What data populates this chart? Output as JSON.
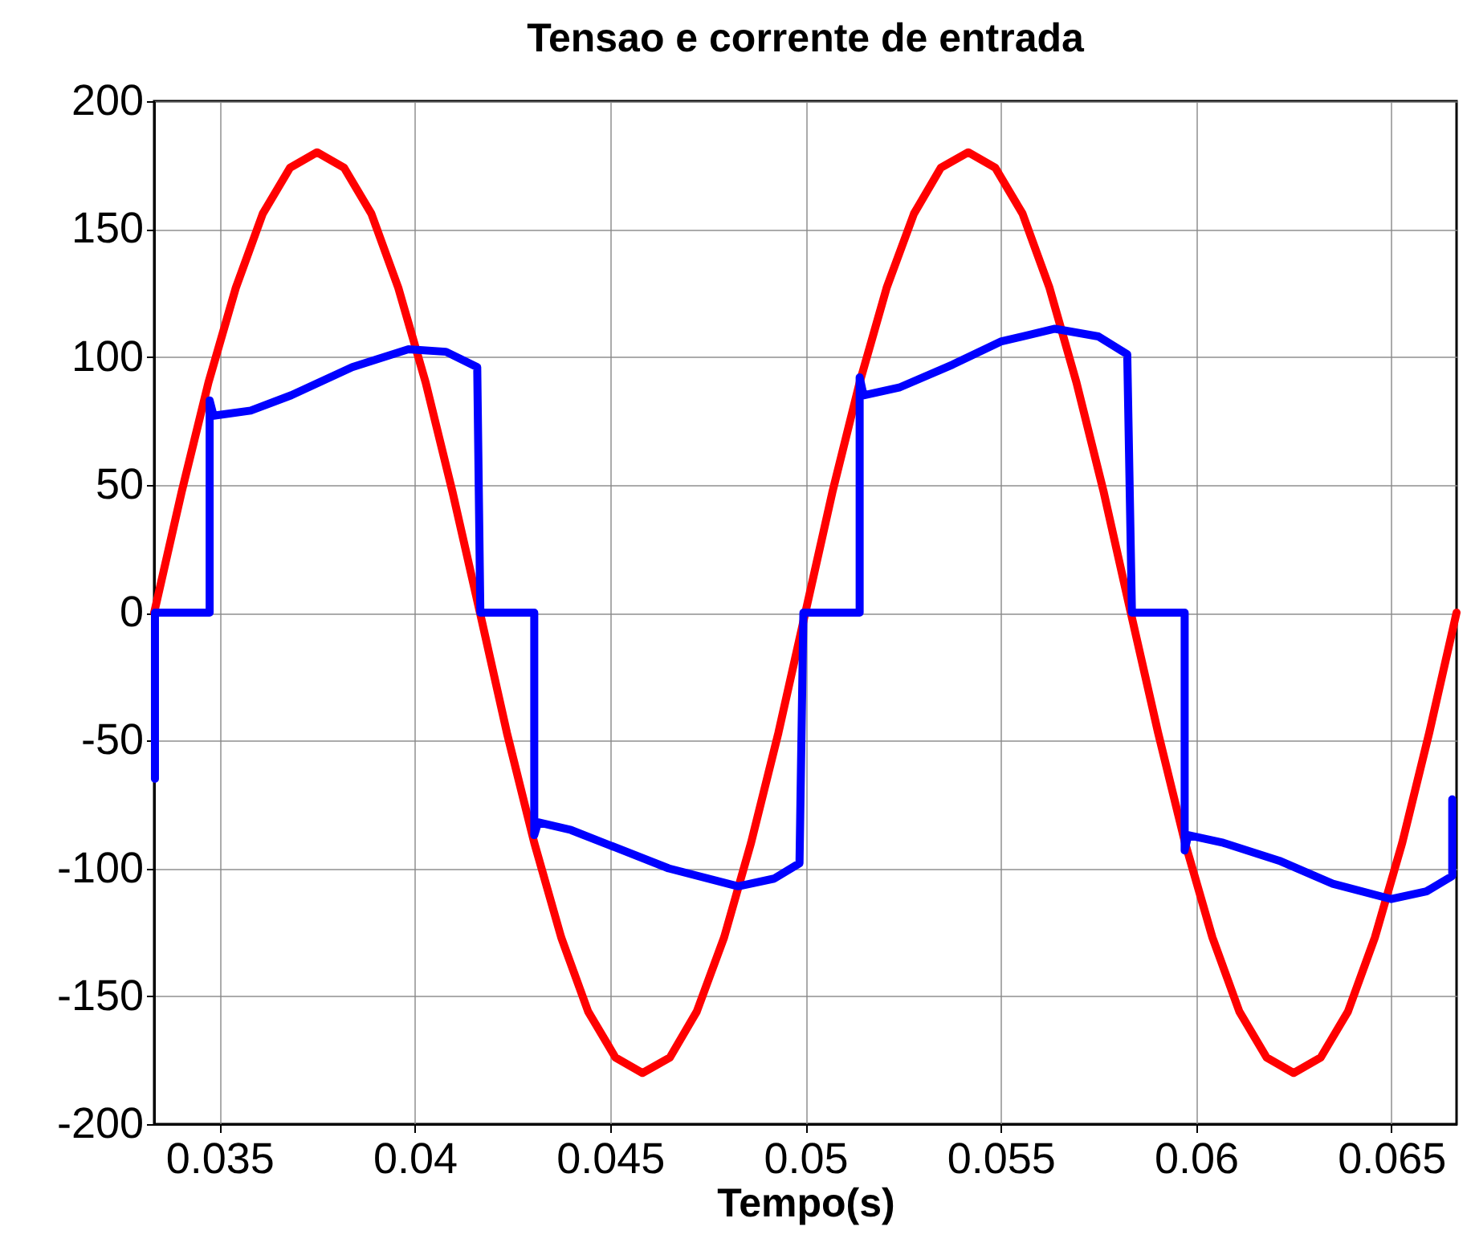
{
  "chart_data": {
    "type": "line",
    "title": "Tensao e corrente de entrada",
    "xlabel": "Tempo(s)",
    "xlim": [
      0.03333,
      0.06667
    ],
    "xticks": [
      0.035,
      0.04,
      0.045,
      0.05,
      0.055,
      0.06,
      0.065
    ],
    "ylim": [
      -200,
      200
    ],
    "yticks": [
      -200,
      -150,
      -100,
      -50,
      0,
      50,
      100,
      150,
      200
    ],
    "grid": true,
    "series": [
      {
        "color": "#ff0000",
        "x": [
          0.03333,
          0.03403,
          0.03472,
          0.03542,
          0.03611,
          0.03681,
          0.0375,
          0.03819,
          0.03889,
          0.03958,
          0.04028,
          0.04097,
          0.04167,
          0.04236,
          0.04306,
          0.04375,
          0.04444,
          0.04514,
          0.04583,
          0.04653,
          0.04722,
          0.04792,
          0.04861,
          0.04931,
          0.05,
          0.05069,
          0.05139,
          0.05208,
          0.05278,
          0.05347,
          0.05417,
          0.05486,
          0.05556,
          0.05625,
          0.05694,
          0.05764,
          0.05833,
          0.05903,
          0.05972,
          0.06042,
          0.06111,
          0.06181,
          0.0625,
          0.06319,
          0.06389,
          0.06458,
          0.06528,
          0.06597,
          0.06667
        ],
        "values": [
          0,
          47,
          90,
          127,
          156,
          174,
          180,
          174,
          156,
          127,
          90,
          47,
          0,
          -47,
          -90,
          -127,
          -156,
          -174,
          -180,
          -174,
          -156,
          -127,
          -90,
          -47,
          0,
          47,
          90,
          127,
          156,
          174,
          180,
          174,
          156,
          127,
          90,
          47,
          0,
          -47,
          -90,
          -127,
          -156,
          -174,
          -180,
          -174,
          -156,
          -127,
          -90,
          -47,
          0
        ]
      },
      {
        "color": "#0000ff",
        "x": [
          0.03335,
          0.03335,
          0.03475,
          0.03475,
          0.03485,
          0.0358,
          0.03684,
          0.0384,
          0.03984,
          0.0408,
          0.0416,
          0.04168,
          0.04306,
          0.04306,
          0.04316,
          0.044,
          0.045,
          0.0465,
          0.04828,
          0.0492,
          0.04985,
          0.04995,
          0.05139,
          0.05139,
          0.05149,
          0.0524,
          0.05377,
          0.055,
          0.05639,
          0.0575,
          0.05824,
          0.05836,
          0.05971,
          0.05971,
          0.0598,
          0.0607,
          0.06213,
          0.0635,
          0.065,
          0.0659,
          0.06656,
          0.06656
        ],
        "values": [
          -65,
          0,
          0,
          83,
          77,
          79,
          85,
          96,
          103,
          102,
          96,
          0,
          0,
          -87,
          -82,
          -85,
          -91,
          -100,
          -107,
          -104,
          -98,
          0,
          0,
          92,
          85,
          88,
          97,
          106,
          111,
          108,
          101,
          0,
          0,
          -93,
          -87,
          -90,
          -97,
          -106,
          -112,
          -109,
          -103,
          -73
        ]
      }
    ]
  }
}
